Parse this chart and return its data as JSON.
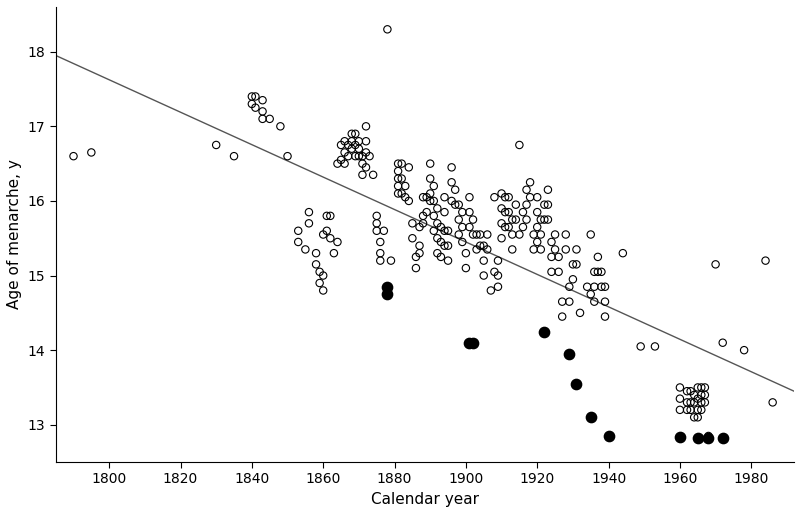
{
  "title": "",
  "xlabel": "Calendar year",
  "ylabel": "Age of menarche, y",
  "xlim": [
    1785,
    1992
  ],
  "ylim": [
    12.5,
    18.6
  ],
  "xticks": [
    1800,
    1820,
    1840,
    1860,
    1880,
    1900,
    1920,
    1940,
    1960,
    1980
  ],
  "yticks": [
    13,
    14,
    15,
    16,
    17,
    18
  ],
  "line_x": [
    1785,
    1992
  ],
  "line_y": [
    17.95,
    13.45
  ],
  "open_circles": [
    [
      1790,
      16.6
    ],
    [
      1795,
      16.65
    ],
    [
      1830,
      16.75
    ],
    [
      1835,
      16.6
    ],
    [
      1840,
      17.4
    ],
    [
      1840,
      17.3
    ],
    [
      1841,
      17.4
    ],
    [
      1841,
      17.25
    ],
    [
      1843,
      17.35
    ],
    [
      1843,
      17.2
    ],
    [
      1843,
      17.1
    ],
    [
      1845,
      17.1
    ],
    [
      1848,
      17.0
    ],
    [
      1850,
      16.6
    ],
    [
      1853,
      15.6
    ],
    [
      1853,
      15.45
    ],
    [
      1855,
      15.35
    ],
    [
      1856,
      15.85
    ],
    [
      1856,
      15.7
    ],
    [
      1858,
      15.3
    ],
    [
      1858,
      15.15
    ],
    [
      1859,
      15.05
    ],
    [
      1859,
      14.9
    ],
    [
      1860,
      15.55
    ],
    [
      1860,
      15.0
    ],
    [
      1860,
      14.8
    ],
    [
      1861,
      15.8
    ],
    [
      1861,
      15.6
    ],
    [
      1862,
      15.8
    ],
    [
      1862,
      15.5
    ],
    [
      1863,
      15.3
    ],
    [
      1864,
      16.5
    ],
    [
      1864,
      15.45
    ],
    [
      1865,
      16.75
    ],
    [
      1865,
      16.55
    ],
    [
      1866,
      16.8
    ],
    [
      1866,
      16.65
    ],
    [
      1866,
      16.5
    ],
    [
      1867,
      16.75
    ],
    [
      1867,
      16.6
    ],
    [
      1868,
      16.9
    ],
    [
      1868,
      16.8
    ],
    [
      1868,
      16.7
    ],
    [
      1869,
      16.9
    ],
    [
      1869,
      16.75
    ],
    [
      1869,
      16.6
    ],
    [
      1870,
      16.8
    ],
    [
      1870,
      16.7
    ],
    [
      1870,
      16.6
    ],
    [
      1871,
      16.6
    ],
    [
      1871,
      16.5
    ],
    [
      1871,
      16.35
    ],
    [
      1872,
      17.0
    ],
    [
      1872,
      16.8
    ],
    [
      1872,
      16.65
    ],
    [
      1872,
      16.45
    ],
    [
      1873,
      16.6
    ],
    [
      1874,
      16.35
    ],
    [
      1875,
      15.8
    ],
    [
      1875,
      15.7
    ],
    [
      1875,
      15.6
    ],
    [
      1876,
      15.45
    ],
    [
      1876,
      15.3
    ],
    [
      1876,
      15.2
    ],
    [
      1877,
      15.6
    ],
    [
      1878,
      18.3
    ],
    [
      1879,
      15.2
    ],
    [
      1881,
      16.5
    ],
    [
      1881,
      16.4
    ],
    [
      1881,
      16.3
    ],
    [
      1881,
      16.2
    ],
    [
      1881,
      16.1
    ],
    [
      1882,
      16.5
    ],
    [
      1882,
      16.3
    ],
    [
      1882,
      16.1
    ],
    [
      1883,
      16.2
    ],
    [
      1883,
      16.05
    ],
    [
      1884,
      16.45
    ],
    [
      1884,
      16.0
    ],
    [
      1885,
      15.7
    ],
    [
      1885,
      15.5
    ],
    [
      1886,
      15.25
    ],
    [
      1886,
      15.1
    ],
    [
      1887,
      15.65
    ],
    [
      1887,
      15.4
    ],
    [
      1887,
      15.3
    ],
    [
      1888,
      16.05
    ],
    [
      1888,
      15.8
    ],
    [
      1888,
      15.7
    ],
    [
      1889,
      16.05
    ],
    [
      1889,
      15.85
    ],
    [
      1890,
      16.5
    ],
    [
      1890,
      16.3
    ],
    [
      1890,
      16.1
    ],
    [
      1890,
      16.0
    ],
    [
      1891,
      16.2
    ],
    [
      1891,
      16.0
    ],
    [
      1891,
      15.8
    ],
    [
      1891,
      15.6
    ],
    [
      1892,
      15.9
    ],
    [
      1892,
      15.7
    ],
    [
      1892,
      15.5
    ],
    [
      1892,
      15.3
    ],
    [
      1893,
      15.65
    ],
    [
      1893,
      15.45
    ],
    [
      1893,
      15.25
    ],
    [
      1894,
      16.05
    ],
    [
      1894,
      15.85
    ],
    [
      1894,
      15.6
    ],
    [
      1894,
      15.4
    ],
    [
      1895,
      15.6
    ],
    [
      1895,
      15.4
    ],
    [
      1895,
      15.2
    ],
    [
      1896,
      16.45
    ],
    [
      1896,
      16.25
    ],
    [
      1896,
      16.0
    ],
    [
      1897,
      16.15
    ],
    [
      1897,
      15.95
    ],
    [
      1898,
      15.95
    ],
    [
      1898,
      15.75
    ],
    [
      1898,
      15.55
    ],
    [
      1899,
      15.85
    ],
    [
      1899,
      15.65
    ],
    [
      1899,
      15.45
    ],
    [
      1900,
      15.3
    ],
    [
      1900,
      15.1
    ],
    [
      1901,
      16.05
    ],
    [
      1901,
      15.85
    ],
    [
      1901,
      15.65
    ],
    [
      1902,
      15.75
    ],
    [
      1902,
      15.55
    ],
    [
      1903,
      15.55
    ],
    [
      1903,
      15.35
    ],
    [
      1904,
      15.55
    ],
    [
      1904,
      15.4
    ],
    [
      1905,
      15.4
    ],
    [
      1905,
      15.2
    ],
    [
      1905,
      15.0
    ],
    [
      1906,
      15.55
    ],
    [
      1906,
      15.35
    ],
    [
      1907,
      14.8
    ],
    [
      1908,
      16.05
    ],
    [
      1908,
      15.05
    ],
    [
      1909,
      15.2
    ],
    [
      1909,
      15.0
    ],
    [
      1909,
      14.85
    ],
    [
      1910,
      16.1
    ],
    [
      1910,
      15.9
    ],
    [
      1910,
      15.7
    ],
    [
      1910,
      15.5
    ],
    [
      1911,
      16.05
    ],
    [
      1911,
      15.85
    ],
    [
      1911,
      15.65
    ],
    [
      1912,
      16.05
    ],
    [
      1912,
      15.85
    ],
    [
      1912,
      15.65
    ],
    [
      1913,
      15.75
    ],
    [
      1913,
      15.55
    ],
    [
      1913,
      15.35
    ],
    [
      1914,
      15.95
    ],
    [
      1914,
      15.75
    ],
    [
      1915,
      16.75
    ],
    [
      1915,
      15.55
    ],
    [
      1916,
      15.85
    ],
    [
      1916,
      15.65
    ],
    [
      1917,
      16.15
    ],
    [
      1917,
      15.95
    ],
    [
      1917,
      15.75
    ],
    [
      1918,
      16.25
    ],
    [
      1918,
      16.05
    ],
    [
      1919,
      15.55
    ],
    [
      1919,
      15.35
    ],
    [
      1920,
      16.05
    ],
    [
      1920,
      15.85
    ],
    [
      1920,
      15.65
    ],
    [
      1920,
      15.45
    ],
    [
      1921,
      15.75
    ],
    [
      1921,
      15.55
    ],
    [
      1921,
      15.35
    ],
    [
      1922,
      15.95
    ],
    [
      1922,
      15.75
    ],
    [
      1923,
      16.15
    ],
    [
      1923,
      15.95
    ],
    [
      1923,
      15.75
    ],
    [
      1924,
      15.45
    ],
    [
      1924,
      15.25
    ],
    [
      1924,
      15.05
    ],
    [
      1925,
      15.55
    ],
    [
      1925,
      15.35
    ],
    [
      1926,
      15.25
    ],
    [
      1926,
      15.05
    ],
    [
      1927,
      14.65
    ],
    [
      1927,
      14.45
    ],
    [
      1928,
      15.55
    ],
    [
      1928,
      15.35
    ],
    [
      1929,
      14.85
    ],
    [
      1929,
      14.65
    ],
    [
      1930,
      15.15
    ],
    [
      1930,
      14.95
    ],
    [
      1931,
      15.35
    ],
    [
      1931,
      15.15
    ],
    [
      1932,
      14.5
    ],
    [
      1934,
      14.85
    ],
    [
      1935,
      15.55
    ],
    [
      1935,
      14.75
    ],
    [
      1936,
      15.05
    ],
    [
      1936,
      14.85
    ],
    [
      1936,
      14.65
    ],
    [
      1937,
      15.25
    ],
    [
      1937,
      15.05
    ],
    [
      1938,
      15.05
    ],
    [
      1938,
      14.85
    ],
    [
      1939,
      14.85
    ],
    [
      1939,
      14.65
    ],
    [
      1939,
      14.45
    ],
    [
      1944,
      15.3
    ],
    [
      1949,
      14.05
    ],
    [
      1953,
      14.05
    ],
    [
      1960,
      13.5
    ],
    [
      1960,
      13.35
    ],
    [
      1960,
      13.2
    ],
    [
      1962,
      13.45
    ],
    [
      1962,
      13.3
    ],
    [
      1962,
      13.2
    ],
    [
      1963,
      13.45
    ],
    [
      1963,
      13.3
    ],
    [
      1963,
      13.2
    ],
    [
      1964,
      13.4
    ],
    [
      1964,
      13.3
    ],
    [
      1964,
      13.1
    ],
    [
      1965,
      13.5
    ],
    [
      1965,
      13.35
    ],
    [
      1965,
      13.2
    ],
    [
      1965,
      13.1
    ],
    [
      1966,
      13.5
    ],
    [
      1966,
      13.4
    ],
    [
      1966,
      13.3
    ],
    [
      1966,
      13.2
    ],
    [
      1967,
      13.5
    ],
    [
      1967,
      13.4
    ],
    [
      1967,
      13.3
    ],
    [
      1968,
      12.85
    ],
    [
      1970,
      15.15
    ],
    [
      1972,
      14.1
    ],
    [
      1978,
      14.0
    ],
    [
      1984,
      15.2
    ],
    [
      1986,
      13.3
    ]
  ],
  "filled_circles": [
    [
      1878,
      14.85
    ],
    [
      1878,
      14.75
    ],
    [
      1901,
      14.1
    ],
    [
      1902,
      14.1
    ],
    [
      1922,
      14.25
    ],
    [
      1929,
      13.95
    ],
    [
      1931,
      13.55
    ],
    [
      1935,
      13.1
    ],
    [
      1940,
      12.85
    ],
    [
      1960,
      12.83
    ],
    [
      1965,
      12.82
    ],
    [
      1968,
      12.82
    ],
    [
      1972,
      12.82
    ]
  ],
  "line_color": "#555555",
  "open_color": "#000000",
  "filled_color": "#000000",
  "bg_color": "#ffffff",
  "marker_size_open": 28,
  "marker_size_filled": 55,
  "open_lw": 0.8
}
